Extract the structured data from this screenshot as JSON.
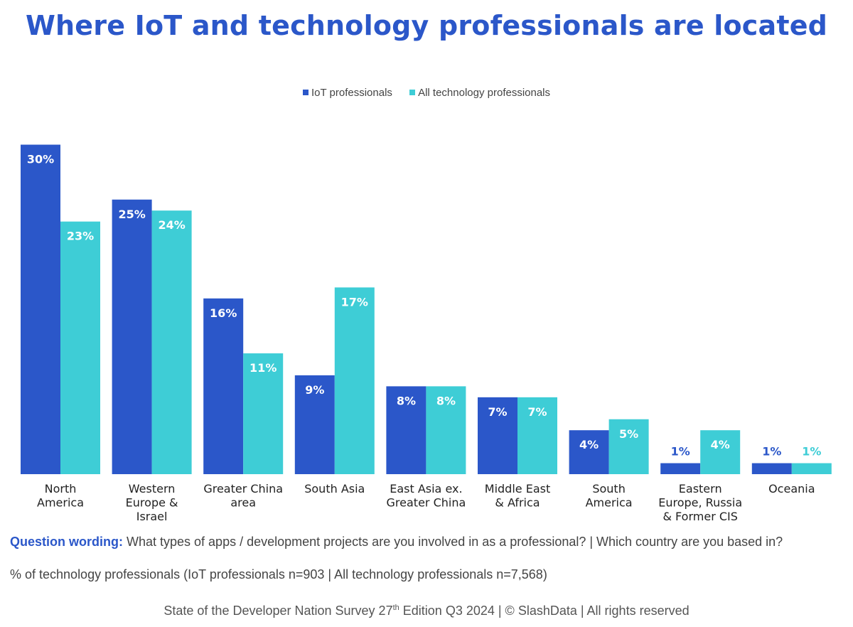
{
  "title": "Where IoT and technology professionals are located",
  "legend": {
    "iot": "IoT professionals",
    "all": "All technology professionals"
  },
  "colors": {
    "iot": "#2b57c9",
    "all": "#3ecdd6",
    "title": "#2b57c9"
  },
  "chart_data": {
    "type": "bar",
    "title": "Where IoT and technology professionals are located",
    "categories": [
      [
        "North",
        "America"
      ],
      [
        "Western",
        "Europe &",
        "Israel"
      ],
      [
        "Greater China",
        "area"
      ],
      [
        "South Asia"
      ],
      [
        "East Asia ex.",
        "Greater China"
      ],
      [
        "Middle East",
        "& Africa"
      ],
      [
        "South",
        "America"
      ],
      [
        "Eastern",
        "Europe, Russia",
        "& Former CIS"
      ],
      [
        "Oceania"
      ]
    ],
    "series": [
      {
        "name": "IoT professionals",
        "values": [
          30,
          25,
          16,
          9,
          8,
          7,
          4,
          1,
          1
        ]
      },
      {
        "name": "All technology professionals",
        "values": [
          23,
          24,
          11,
          17,
          8,
          7,
          5,
          4,
          1
        ]
      }
    ],
    "value_suffix": "%",
    "ylim": [
      0,
      30
    ],
    "grid": false,
    "legend_position": "top-center"
  },
  "question": {
    "lead": "Question wording:",
    "text": " What types of apps / development projects are you involved in as a professional? | Which country are you based in?"
  },
  "base_note": "% of technology professionals (IoT professionals n=903 | All technology professionals n=7,568)",
  "footer": {
    "pre": "State of the Developer Nation Survey 27",
    "sup": "th",
    "post": " Edition Q3 2024 | © SlashData | All rights reserved"
  }
}
